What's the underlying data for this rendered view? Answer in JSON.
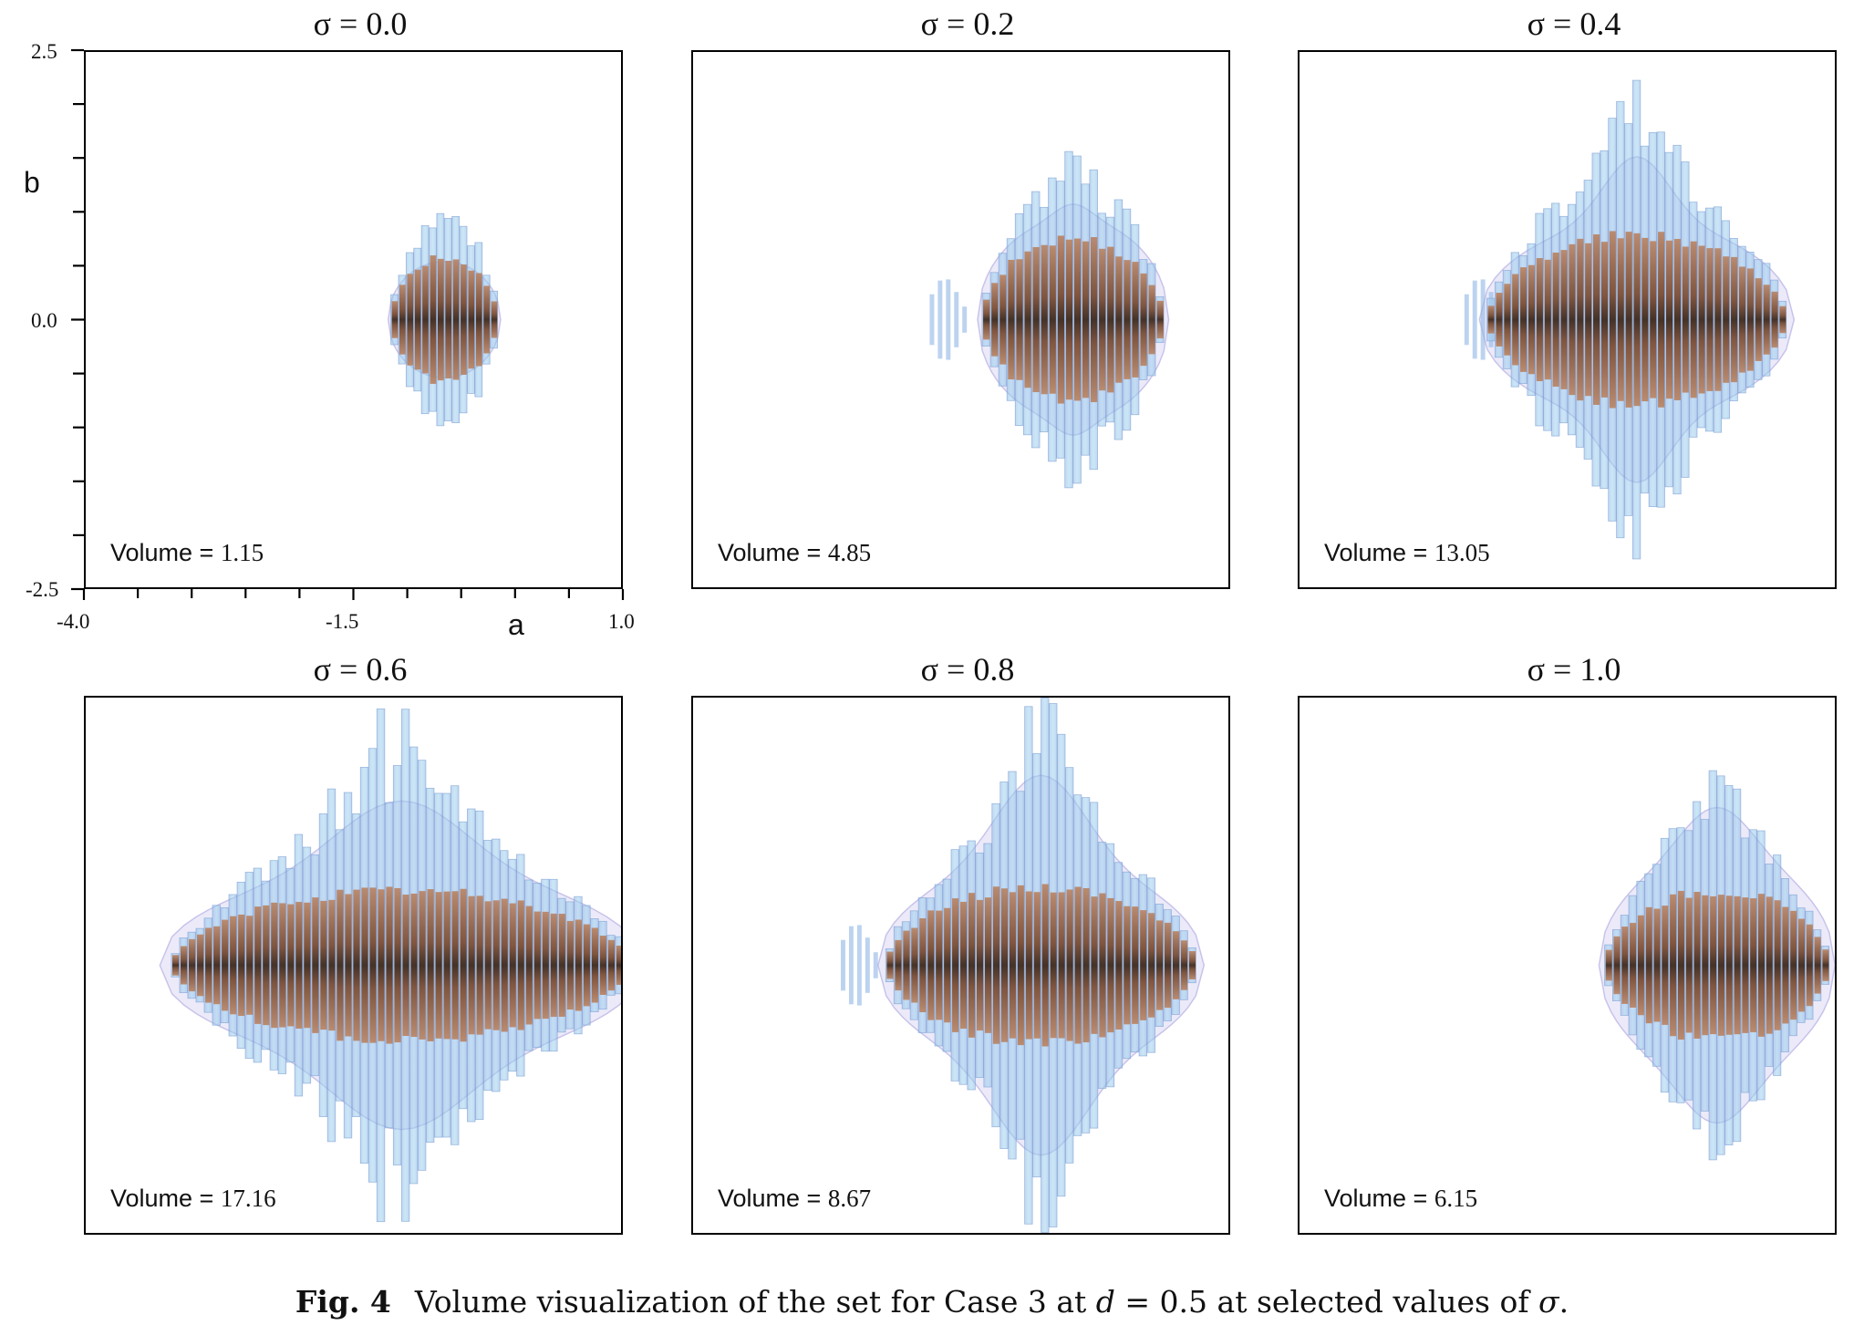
{
  "figure": {
    "panels": [
      {
        "title": "σ = 0.0",
        "volume_label": "Volume = ",
        "volume_value": "1.15",
        "shape": {
          "center_a": -0.65,
          "half_width": 0.5,
          "half_height": 0.95,
          "cluster_half_width": 0.08,
          "cluster_boost": 0.0,
          "halo": 0.02,
          "left_tail": 0
        }
      },
      {
        "title": "σ = 0.2",
        "volume_label": "Volume = ",
        "volume_value": "4.85",
        "shape": {
          "center_a": -0.45,
          "half_width": 0.85,
          "half_height": 1.25,
          "cluster_half_width": 0.1,
          "cluster_boost": 0.15,
          "halo": 0.25,
          "left_tail": 0.7
        }
      },
      {
        "title": "σ = 0.4",
        "volume_label": "Volume = ",
        "volume_value": "13.05",
        "shape": {
          "center_a": -0.85,
          "half_width": 1.4,
          "half_height": 1.3,
          "cluster_half_width": 0.2,
          "cluster_boost": 0.7,
          "halo": 0.18,
          "left_tail": 0.3
        }
      },
      {
        "title": "σ = 0.6",
        "volume_label": "Volume = ",
        "volume_value": "17.16",
        "shape": {
          "center_a": -1.05,
          "half_width": 2.15,
          "half_height": 1.15,
          "cluster_half_width": 0.5,
          "cluster_boost": 0.8,
          "halo": 0.22,
          "left_tail": 0
        }
      },
      {
        "title": "σ = 0.8",
        "volume_label": "Volume = ",
        "volume_value": "8.67",
        "shape": {
          "center_a": -0.75,
          "half_width": 1.45,
          "half_height": 1.2,
          "cluster_half_width": 0.35,
          "cluster_boost": 0.95,
          "halo": 0.25,
          "left_tail": 0.6
        }
      },
      {
        "title": "σ = 1.0",
        "volume_label": "Volume = ",
        "volume_value": "6.15",
        "shape": {
          "center_a": -0.1,
          "half_width": 1.05,
          "half_height": 1.15,
          "cluster_half_width": 0.3,
          "cluster_boost": 0.5,
          "halo": 0.35,
          "left_tail": 0
        }
      }
    ],
    "axes": {
      "x_label": "a",
      "y_label": "b",
      "x_ticks": [
        "-4.0",
        "-1.5",
        "1.0"
      ],
      "y_ticks": [
        "2.5",
        "0.0",
        "-2.5"
      ],
      "xlim": [
        -4.0,
        1.0
      ],
      "ylim": [
        -2.5,
        2.5
      ]
    },
    "caption": {
      "fig_num": "Fig. 4",
      "text_1": "Volume visualization of the set for Case 3 at ",
      "math_d": "d",
      "text_2": " = 0.5 at selected values of ",
      "math_sigma": "σ",
      "text_3": "."
    },
    "colors": {
      "core_dark": "#3a2416",
      "core_mid": "#7a4a30",
      "core_light": "#b98566",
      "shell_blue": "#8fb6e6",
      "shell_cyan": "#9ed4ef",
      "halo_lavender": "#c8c4ee"
    }
  }
}
